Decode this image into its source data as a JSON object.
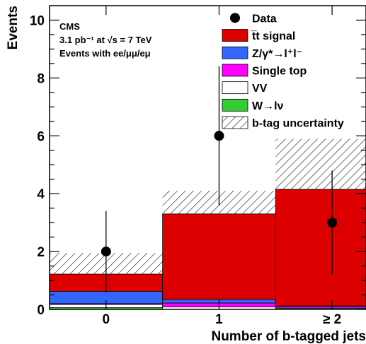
{
  "chart_data": {
    "type": "bar",
    "stacked": true,
    "xlabel": "Number of b-tagged jets",
    "ylabel": "Events",
    "categories": [
      "0",
      "1",
      "≥ 2"
    ],
    "ylim": [
      0,
      10.5
    ],
    "yticks": [
      0,
      2,
      4,
      6,
      8,
      10
    ],
    "series": [
      {
        "name": "W→lν",
        "color": "#33cc33",
        "values": [
          0.06,
          0.0,
          0.0
        ]
      },
      {
        "name": "VV",
        "color": "#ffffff",
        "values": [
          0.11,
          0.09,
          0.04
        ]
      },
      {
        "name": "Single top",
        "color": "#ff00ff",
        "values": [
          0.03,
          0.13,
          0.05
        ]
      },
      {
        "name": "Z/γ*→l⁺l⁻",
        "color": "#3366ff",
        "values": [
          0.42,
          0.12,
          0.03
        ]
      },
      {
        "name": "t̅t signal",
        "color": "#dd0000",
        "values": [
          0.6,
          2.96,
          4.03
        ]
      }
    ],
    "uncertainty": {
      "name": "b-tag uncertainty",
      "low": [
        0.7,
        2.45,
        2.4
      ],
      "high": [
        1.95,
        4.1,
        5.9
      ]
    },
    "data": {
      "name": "Data",
      "values": [
        2,
        6,
        3
      ],
      "err_low": [
        1.4,
        2.4,
        1.8
      ],
      "err_high": [
        1.4,
        2.4,
        1.8
      ]
    },
    "annotations": {
      "experiment": "CMS",
      "lumi_line": "3.1 pb⁻¹ at √s = 7 TeV",
      "channel_line": "Events with ee/μμ/eμ"
    },
    "legend_placement": "top-right"
  }
}
